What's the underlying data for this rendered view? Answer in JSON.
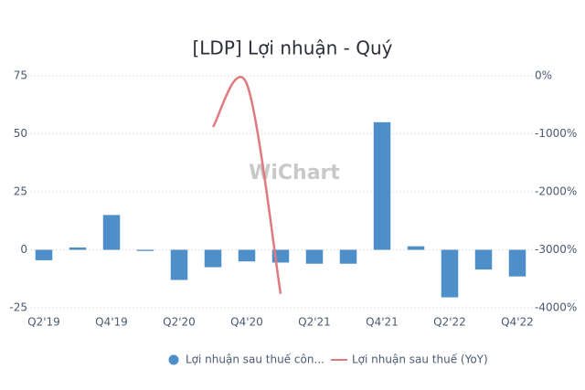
{
  "chart_data": {
    "type": "bar-line",
    "title": "[LDP] Lợi nhuận - Quý",
    "watermark": "WiChart",
    "categories": [
      "Q2'19",
      null,
      "Q4'19",
      null,
      "Q2'20",
      null,
      "Q4'20",
      null,
      "Q2'21",
      null,
      "Q4'21",
      null,
      "Q2'22",
      null,
      "Q4'22"
    ],
    "series": [
      {
        "name": "Lợi nhuận sau thuế côn...",
        "type": "bar",
        "color": "#4e8fca",
        "values": [
          -4.5,
          1,
          15,
          -0.5,
          -13,
          -7.5,
          -5,
          -5.5,
          -6,
          -6,
          55,
          1.5,
          -20.5,
          -8.5,
          -11.5
        ]
      },
      {
        "name": "Lợi nhuận sau thuế (YoY)",
        "type": "line",
        "axis": "y2",
        "color": "#e07a80",
        "values": [
          null,
          null,
          null,
          null,
          null,
          -880,
          -140,
          -3760,
          null,
          null,
          null,
          null,
          null,
          null,
          null
        ]
      }
    ],
    "ylim": [
      -25,
      75
    ],
    "yticks": [
      -25,
      0,
      25,
      50,
      75
    ],
    "y2lim": [
      -4000,
      0
    ],
    "y2ticks": [
      {
        "value": -4000,
        "label": "-4000%"
      },
      {
        "value": -3000,
        "label": "-3000%"
      },
      {
        "value": -2000,
        "label": "-2000%"
      },
      {
        "value": -1000,
        "label": "-1000%"
      },
      {
        "value": 0,
        "label": "0%"
      }
    ],
    "grid": true
  }
}
